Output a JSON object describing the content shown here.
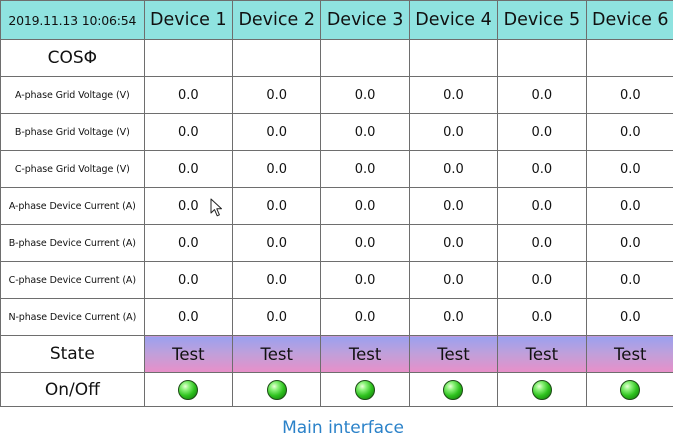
{
  "header": {
    "timestamp": "2019.11.13 10:06:54",
    "devices": [
      "Device 1",
      "Device 2",
      "Device 3",
      "Device 4",
      "Device 5",
      "Device 6"
    ]
  },
  "rows": {
    "cos_label": "COSΦ",
    "params": [
      {
        "label": "A-phase Grid Voltage (V)",
        "values": [
          "0.0",
          "0.0",
          "0.0",
          "0.0",
          "0.0",
          "0.0"
        ]
      },
      {
        "label": "B-phase Grid Voltage (V)",
        "values": [
          "0.0",
          "0.0",
          "0.0",
          "0.0",
          "0.0",
          "0.0"
        ]
      },
      {
        "label": "C-phase Grid Voltage (V)",
        "values": [
          "0.0",
          "0.0",
          "0.0",
          "0.0",
          "0.0",
          "0.0"
        ]
      },
      {
        "label": "A-phase Device Current (A)",
        "values": [
          "0.0",
          "0.0",
          "0.0",
          "0.0",
          "0.0",
          "0.0"
        ]
      },
      {
        "label": "B-phase Device Current (A)",
        "values": [
          "0.0",
          "0.0",
          "0.0",
          "0.0",
          "0.0",
          "0.0"
        ]
      },
      {
        "label": "C-phase Device Current (A)",
        "values": [
          "0.0",
          "0.0",
          "0.0",
          "0.0",
          "0.0",
          "0.0"
        ]
      },
      {
        "label": "N-phase Device Current (A)",
        "values": [
          "0.0",
          "0.0",
          "0.0",
          "0.0",
          "0.0",
          "0.0"
        ]
      }
    ],
    "state_label": "State",
    "state_values": [
      "Test",
      "Test",
      "Test",
      "Test",
      "Test",
      "Test"
    ],
    "onoff_label": "On/Off",
    "onoff_status": [
      "on",
      "on",
      "on",
      "on",
      "on",
      "on"
    ]
  },
  "colors": {
    "header_bg": "#8fe3e0",
    "state_gradient": [
      "#9aa1ef",
      "#e88fc8"
    ],
    "led_on": "#2ec21e",
    "caption": "#2b82c9"
  },
  "icons": {
    "status_led": "green-led-icon",
    "pointer": "mouse-pointer-icon"
  },
  "caption": "Main interface"
}
